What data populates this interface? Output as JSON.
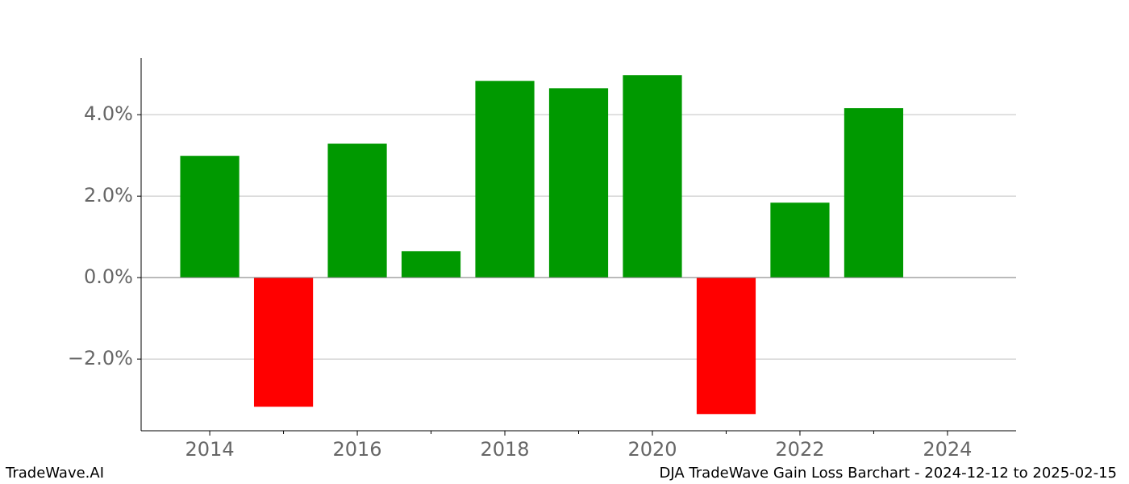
{
  "chart_data": {
    "type": "bar",
    "x": [
      2014,
      2015,
      2016,
      2017,
      2018,
      2019,
      2020,
      2021,
      2022,
      2023
    ],
    "values": [
      2.99,
      -3.17,
      3.29,
      0.65,
      4.83,
      4.65,
      4.97,
      -3.35,
      1.84,
      4.16
    ],
    "colors": [
      "#009900",
      "#ff0000",
      "#009900",
      "#009900",
      "#009900",
      "#009900",
      "#009900",
      "#ff0000",
      "#009900",
      "#009900"
    ],
    "xlim": [
      2013.07,
      2024.93
    ],
    "xticks": [
      2014,
      2016,
      2018,
      2020,
      2022,
      2024
    ],
    "xminorticks": [
      2015,
      2017,
      2019,
      2021,
      2023
    ],
    "ylim": [
      -3.76,
      5.39
    ],
    "yticks": [
      {
        "value": -2,
        "label": "−2.0%"
      },
      {
        "value": 0,
        "label": "0.0%"
      },
      {
        "value": 2,
        "label": "2.0%"
      },
      {
        "value": 4,
        "label": "4.0%"
      }
    ],
    "grid": true,
    "zero_line": true
  },
  "footer": {
    "left": "TradeWave.AI",
    "right": "DJA TradeWave Gain Loss Barchart - 2024-12-12 to 2025-02-15"
  }
}
